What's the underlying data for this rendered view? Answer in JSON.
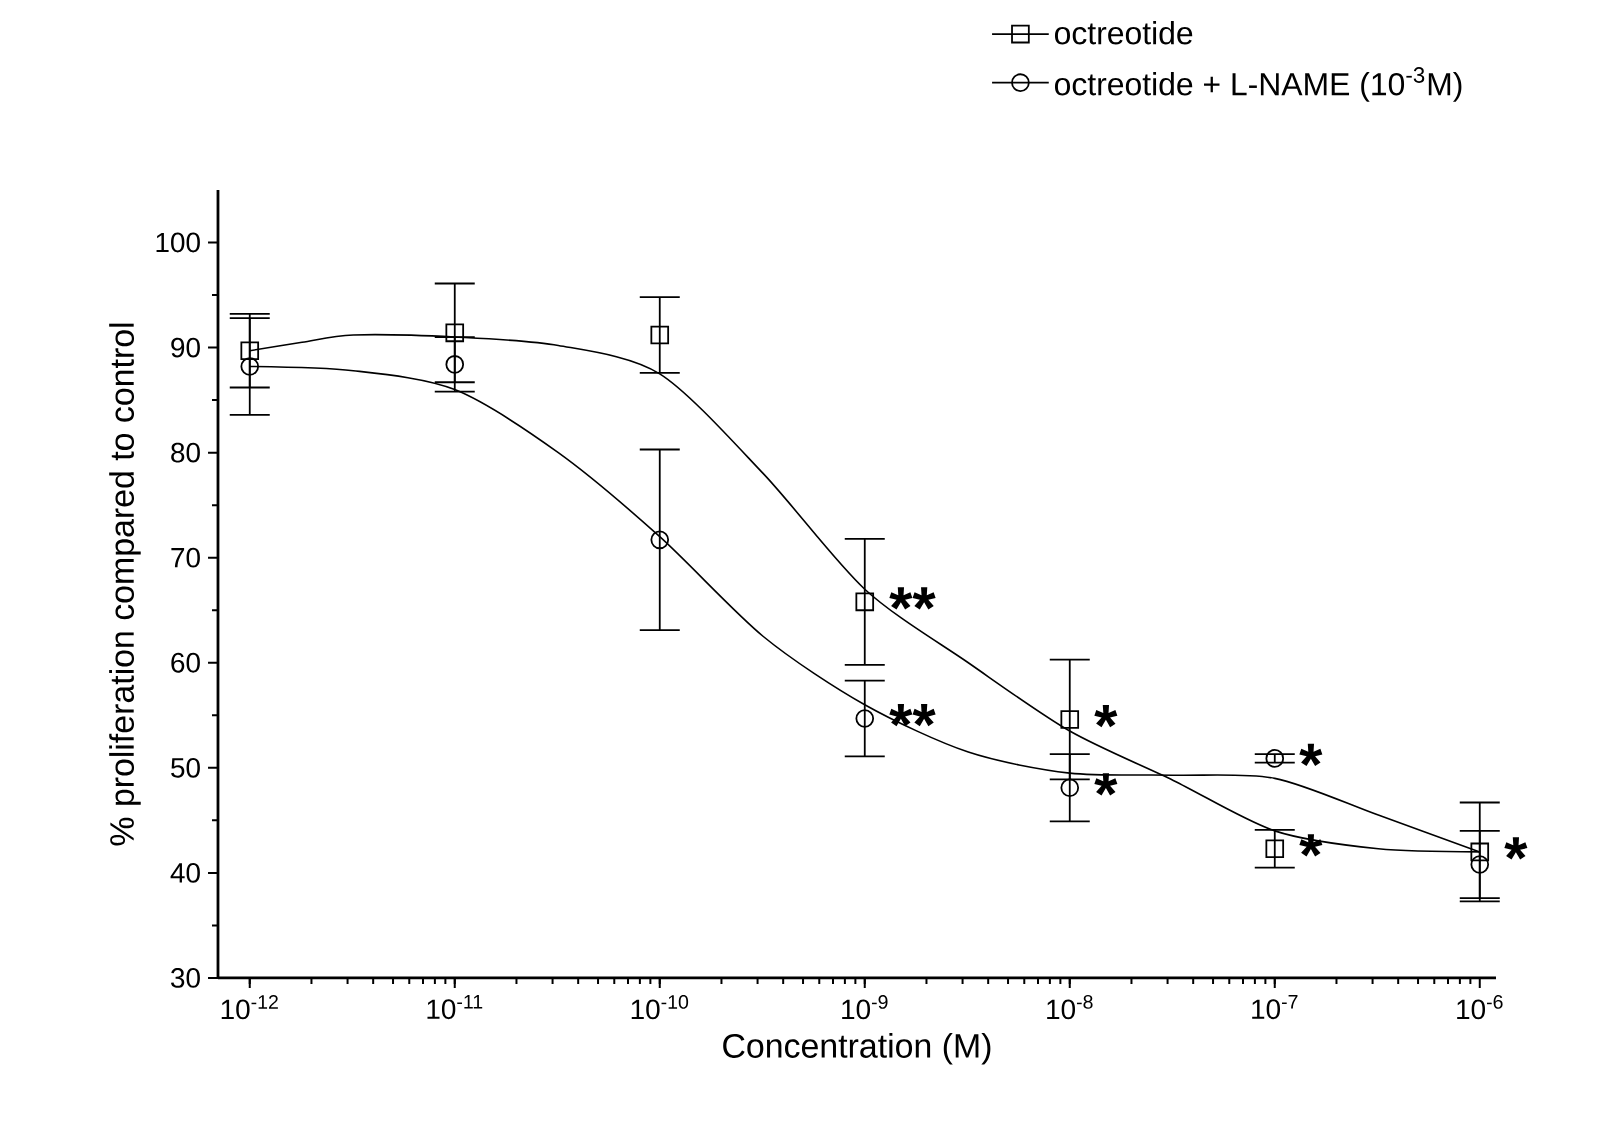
{
  "chart_data": {
    "type": "scatter",
    "xlabel": "Concentration (M)",
    "ylabel": "% proliferation compared to control",
    "log": "x",
    "grid": false,
    "legend": "top right",
    "xlim": [
      7e-13,
      1.2e-06
    ],
    "ylim": [
      30,
      105
    ],
    "xticks": [
      {
        "value": 1e-12,
        "label": "10$^{-12}$"
      },
      {
        "value": 1e-11,
        "label": "10$^{-11}$"
      },
      {
        "value": 1e-10,
        "label": "10$^{-10}$"
      },
      {
        "value": 1e-09,
        "label": "10$^{-9}$"
      },
      {
        "value": 1e-08,
        "label": "10$^{-8}$"
      },
      {
        "value": 1e-07,
        "label": "10$^{-7}$"
      },
      {
        "value": 1e-06,
        "label": "10$^{-6}$"
      }
    ],
    "yticks": [
      30,
      40,
      50,
      60,
      70,
      80,
      90,
      100
    ],
    "x": [
      1e-12,
      1e-11,
      1e-10,
      1e-09,
      1e-08,
      1e-07,
      1e-06
    ],
    "series": [
      {
        "name": "octreotide",
        "marker": "square",
        "color": "#000000",
        "values": [
          89.7,
          91.4,
          91.2,
          65.8,
          54.6,
          42.3,
          42.0
        ],
        "errors": [
          3.5,
          4.7,
          3.6,
          6.0,
          5.7,
          1.8,
          4.7
        ]
      },
      {
        "name": "octreotide + L-NAME (10$^{-3}$M)",
        "marker": "circle",
        "color": "#000000",
        "values": [
          88.2,
          88.4,
          71.7,
          54.7,
          48.1,
          50.9,
          40.8
        ],
        "errors": [
          4.6,
          2.6,
          8.6,
          3.6,
          3.2,
          0.4,
          3.2
        ]
      },
      {
        "type": "line",
        "color": "#000000",
        "x": [
          1e-12,
          1.8e-12,
          3.2e-12,
          1e-11,
          3.2e-11,
          1e-10,
          3.2e-10,
          1e-09,
          3.2e-09,
          1e-08,
          3.2e-08,
          1e-07,
          3.2e-07,
          1e-06
        ],
        "values": [
          89.7,
          90.5,
          91.2,
          91.0,
          90.2,
          87.5,
          78.0,
          67.0,
          60.0,
          53.5,
          48.8,
          44.0,
          42.3,
          42.0
        ]
      },
      {
        "type": "line",
        "color": "#000000",
        "x": [
          1e-12,
          3.2e-12,
          1e-11,
          3.2e-11,
          1e-10,
          3.2e-10,
          1e-09,
          3.2e-09,
          1e-08,
          3.2e-08,
          1e-07,
          3.2e-07,
          1e-06
        ],
        "values": [
          88.2,
          87.8,
          86.0,
          80.0,
          72.0,
          62.5,
          56.0,
          51.5,
          49.5,
          49.3,
          49.0,
          45.5,
          42.0
        ]
      }
    ],
    "annotations": [
      {
        "text": "**",
        "x": 1e-09,
        "y": 65.8
      },
      {
        "text": "**",
        "x": 1e-09,
        "y": 54.7
      },
      {
        "text": "*",
        "x": 1e-08,
        "y": 54.6
      },
      {
        "text": "*",
        "x": 1e-08,
        "y": 48.1
      },
      {
        "text": "*",
        "x": 1e-07,
        "y": 50.9
      },
      {
        "text": "*",
        "x": 1e-07,
        "y": 42.3
      },
      {
        "text": "*",
        "x": 1e-06,
        "y": 42.0
      }
    ]
  }
}
